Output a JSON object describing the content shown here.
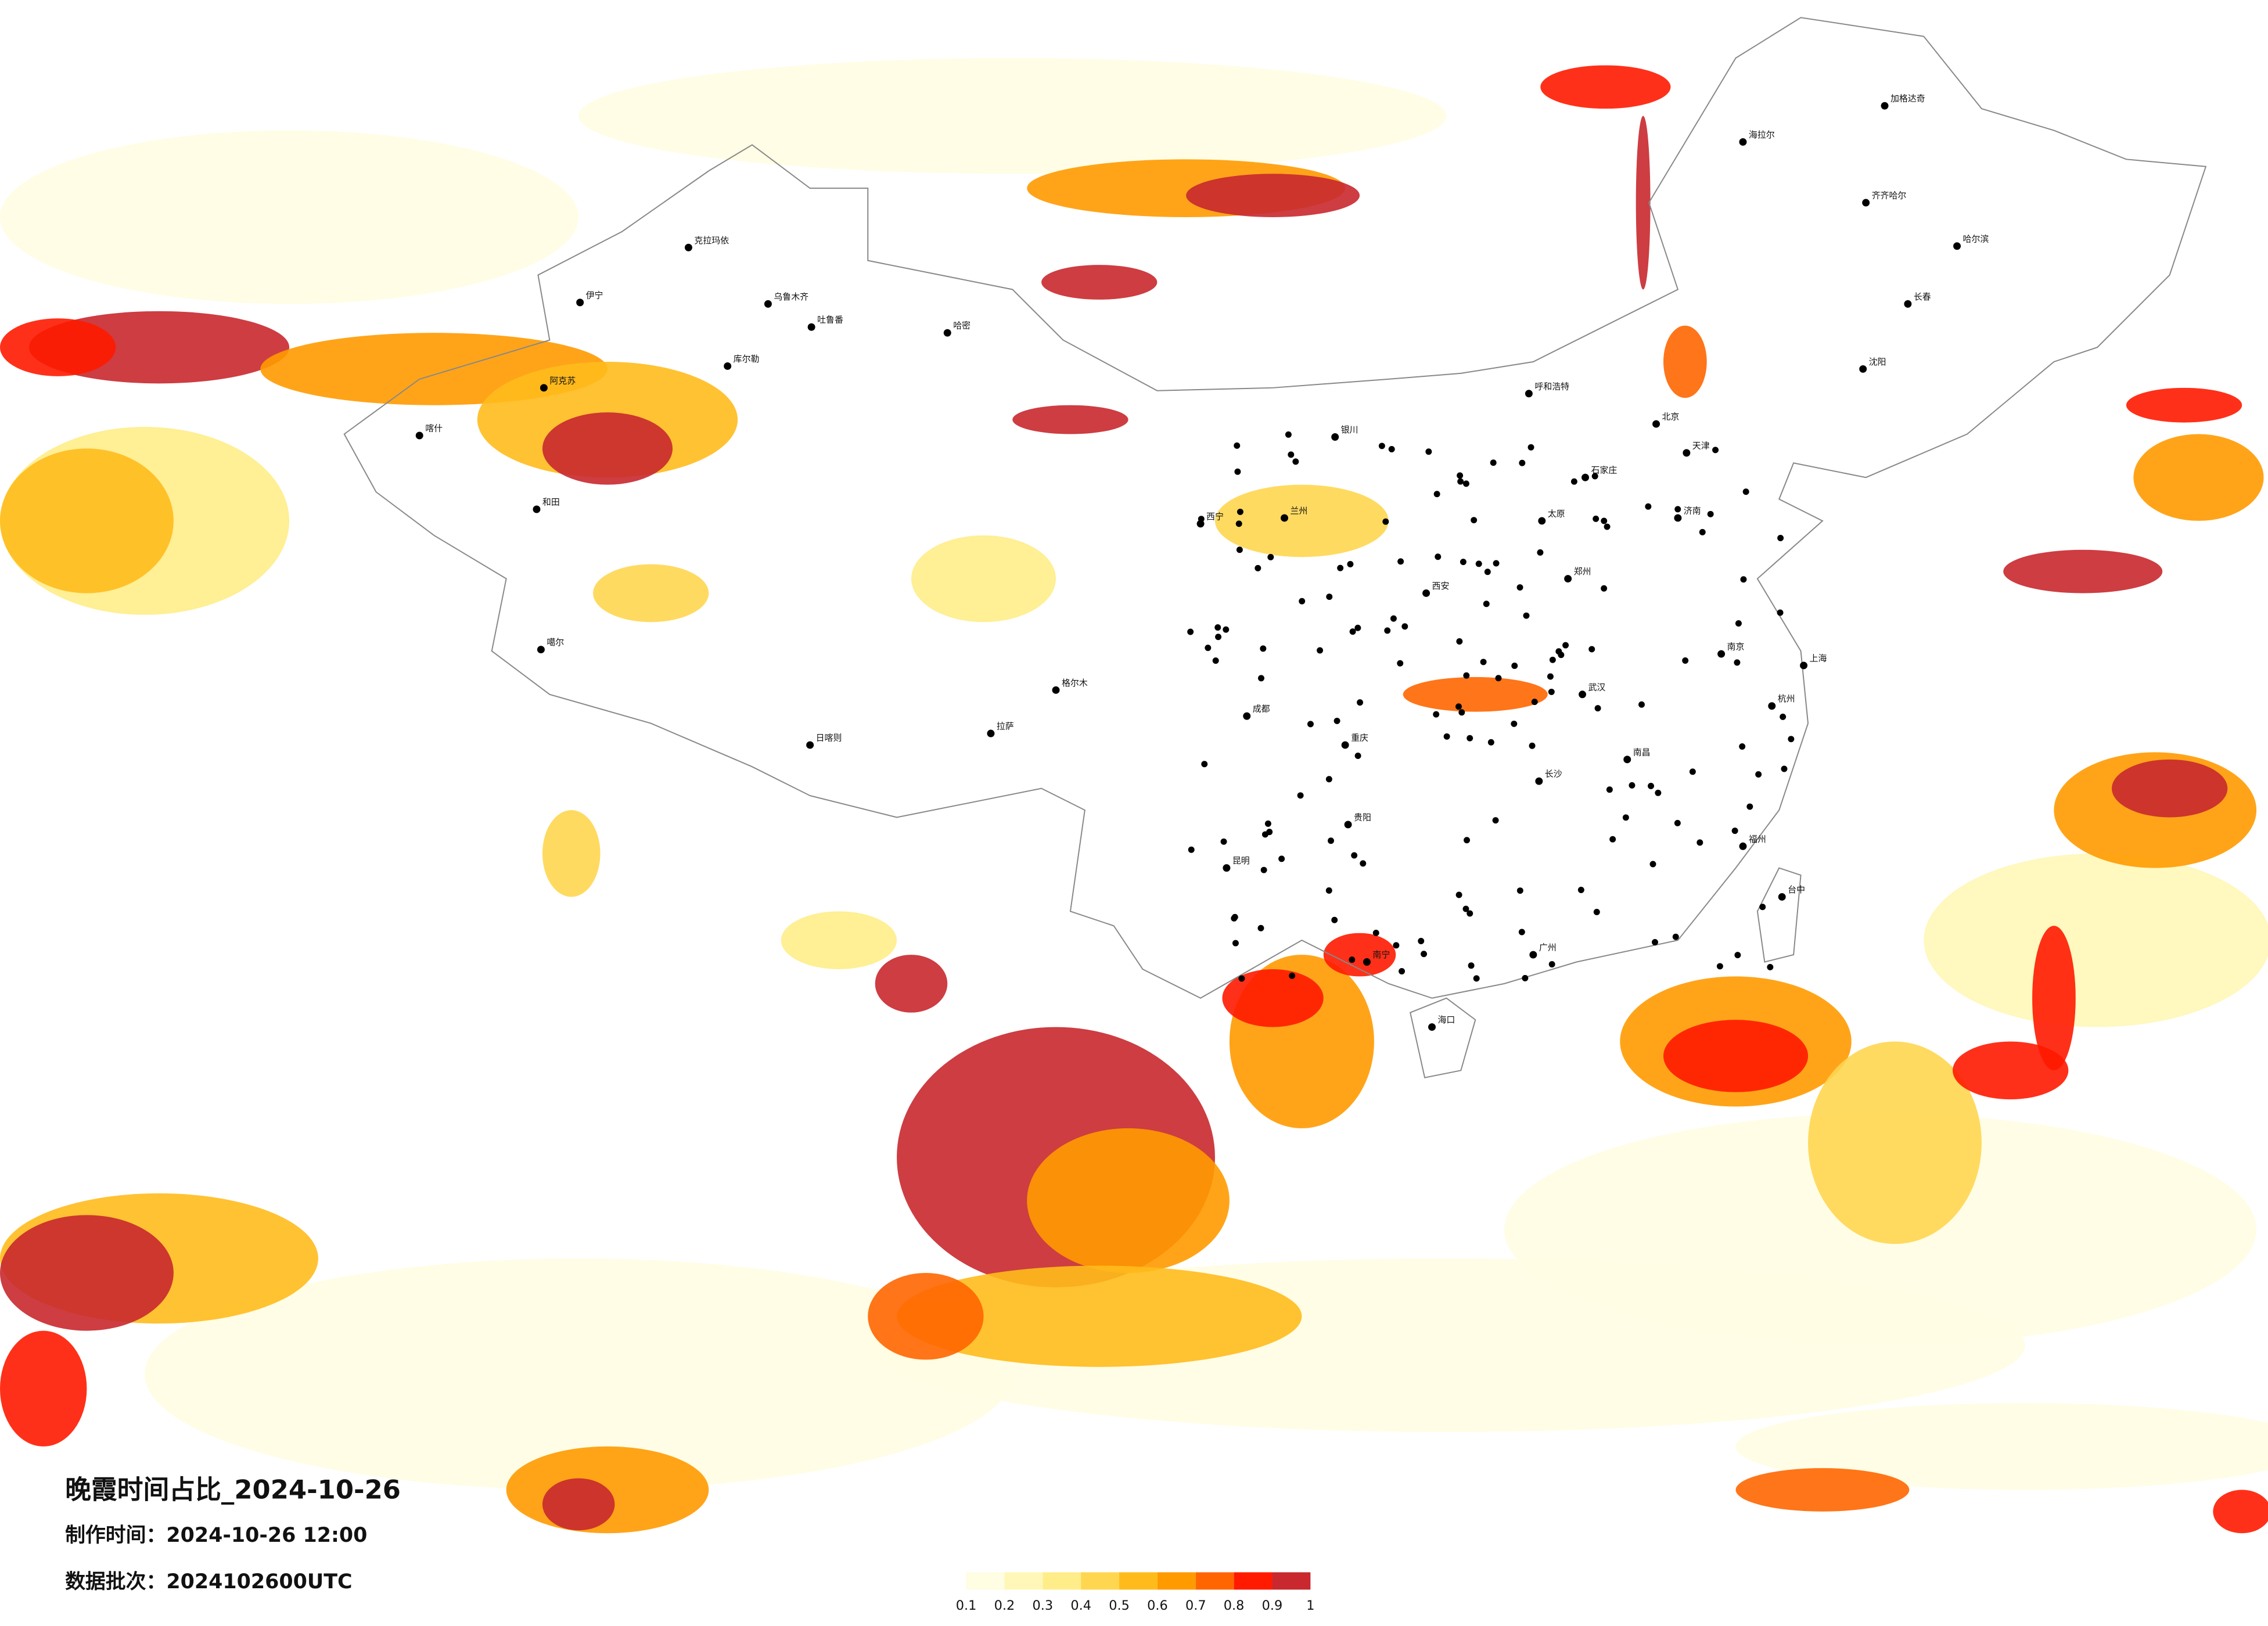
{
  "title": "晚霞时间占比_2024-10-26",
  "production_time": "制作时间：2024-10-26 12:00",
  "data_batch": "数据批次：2024102600UTC",
  "legend": {
    "ticks": [
      0.1,
      0.2,
      0.3,
      0.4,
      0.5,
      0.6,
      0.7,
      0.8,
      0.9,
      1
    ],
    "colors": [
      "#fffde2",
      "#fff7b8",
      "#ffed8a",
      "#ffd650",
      "#ffbb1c",
      "#ff9a00",
      "#ff6600",
      "#ff1a00",
      "#c8282e"
    ]
  },
  "cities": [
    "克拉玛依",
    "伊宁",
    "乌鲁木齐",
    "吐鲁番",
    "哈密",
    "库尔勒",
    "阿克苏",
    "喀什",
    "和田",
    "噶尔",
    "海拉尔",
    "加格达奇",
    "齐齐哈尔",
    "哈尔滨",
    "长春",
    "沈阳",
    "呼和浩特",
    "北京",
    "天津",
    "石家庄",
    "济南",
    "太原",
    "西安",
    "兰州",
    "西宁",
    "银川",
    "郑州",
    "武汉",
    "南京",
    "上海",
    "杭州",
    "长沙",
    "南昌",
    "福州",
    "广州",
    "南宁",
    "贵阳",
    "昆明",
    "成都",
    "重庆",
    "拉萨",
    "日喀则",
    "海口",
    "台中",
    "格尔木"
  ]
}
